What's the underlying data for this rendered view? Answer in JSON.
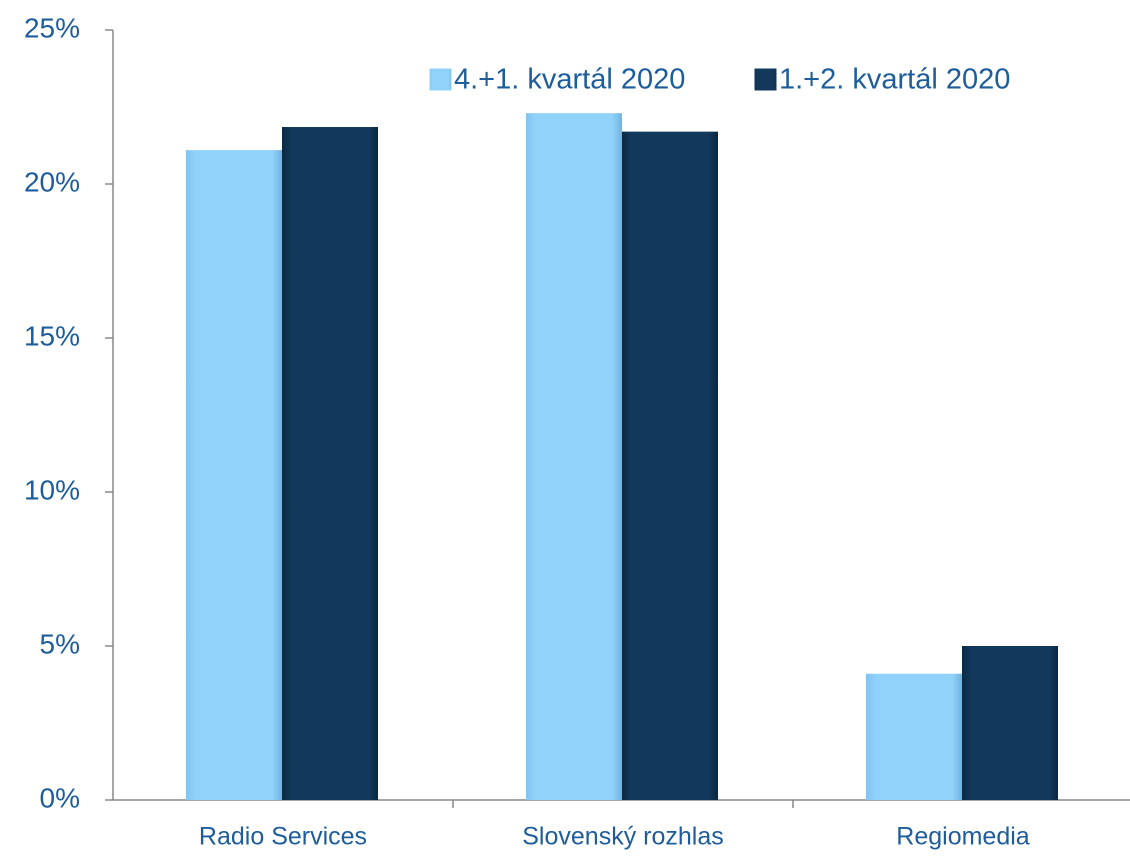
{
  "chart_data": {
    "type": "bar",
    "categories": [
      "Radio Services",
      "Slovenský rozhlas",
      "Regiomedia"
    ],
    "series": [
      {
        "name": "4.+1. kvartál 2020",
        "color": "#91d2fa",
        "values": [
          21.1,
          22.3,
          4.1
        ]
      },
      {
        "name": "1.+2. kvartál 2020",
        "color": "#12395c",
        "values": [
          21.85,
          21.7,
          5.0
        ]
      }
    ],
    "ylim": [
      0,
      25
    ],
    "yticks": [
      {
        "value": 0,
        "label": "0%"
      },
      {
        "value": 5,
        "label": "5%"
      },
      {
        "value": 10,
        "label": "10%"
      },
      {
        "value": 15,
        "label": "15%"
      },
      {
        "value": 20,
        "label": "20%"
      },
      {
        "value": 25,
        "label": "25%"
      }
    ],
    "legend": "top-right"
  }
}
